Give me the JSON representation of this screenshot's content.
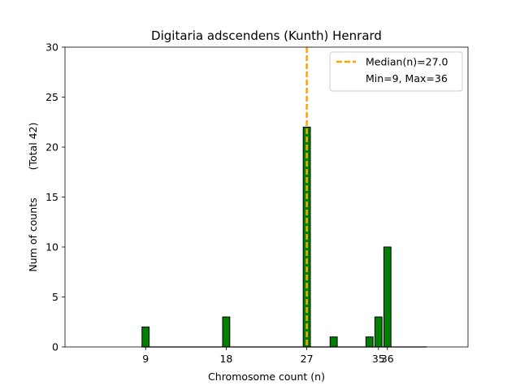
{
  "chart_data": {
    "type": "bar",
    "title": "Digitaria adscendens (Kunth) Henrard",
    "xlabel": "Chromosome count (n)",
    "ylabel": "Num of counts",
    "ylabel_secondary": "(Total 42)",
    "xlim": [
      0,
      45
    ],
    "ylim": [
      0,
      30
    ],
    "yticks": [
      0,
      5,
      10,
      15,
      20,
      25,
      30
    ],
    "xticks": [
      9,
      18,
      27,
      35,
      36
    ],
    "bins": [
      {
        "x": 9,
        "count": 2
      },
      {
        "x": 18,
        "count": 3
      },
      {
        "x": 27,
        "count": 22
      },
      {
        "x": 30,
        "count": 1
      },
      {
        "x": 34,
        "count": 1
      },
      {
        "x": 35,
        "count": 3
      },
      {
        "x": 36,
        "count": 10
      }
    ],
    "bar_color": "#008000",
    "median": 27.0,
    "median_color": "#FFA500",
    "legend": {
      "placement": "top-right",
      "entries": [
        "Median(n)=27.0",
        "Min=9, Max=36"
      ]
    }
  }
}
